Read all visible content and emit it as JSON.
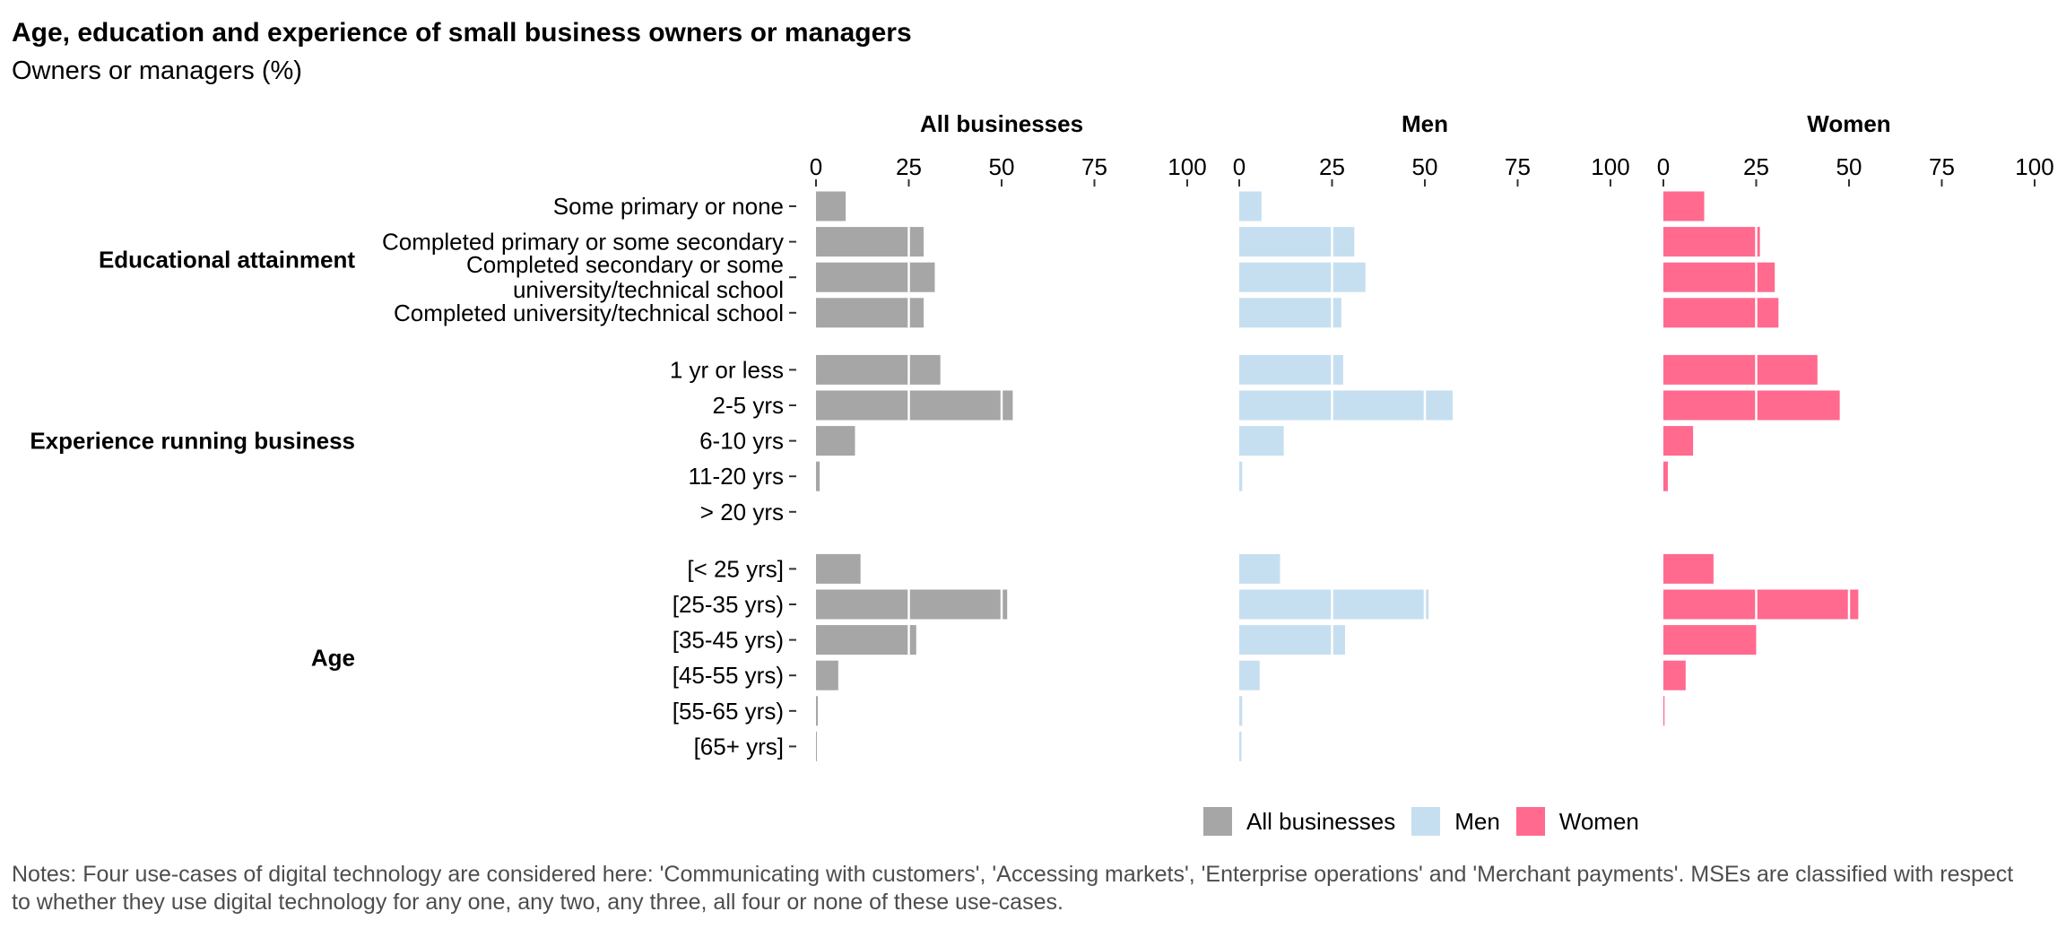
{
  "title": "Age, education and experience of small business owners or managers",
  "subtitle": "Owners or managers (%)",
  "note": "Notes: Four use-cases of digital technology are considered here: 'Communicating with customers', 'Accessing markets', 'Enterprise operations' and 'Merchant payments'. MSEs are classified with respect to whether they use digital technology for any one, any two, any three, all four or none of these use-cases.",
  "colors": {
    "All businesses": "#a6a6a6",
    "Men": "#c6dff0",
    "Women": "#ff6a8e"
  },
  "chart_data": {
    "type": "bar",
    "orientation": "horizontal",
    "facets": [
      "All businesses",
      "Men",
      "Women"
    ],
    "xlim": [
      0,
      100
    ],
    "xticks": [
      0,
      25,
      50,
      75,
      100
    ],
    "grid": false,
    "legend_position": "bottom",
    "groups": [
      {
        "name": "Educational attainment",
        "categories": [
          "Some primary or none",
          "Completed primary or some secondary",
          "Completed secondary or some\nuniversity/technical school",
          "Completed university/technical school"
        ]
      },
      {
        "name": "Experience running business",
        "categories": [
          "1 yr or less",
          "2-5 yrs",
          "6-10 yrs",
          "11-20 yrs",
          "> 20 yrs"
        ]
      },
      {
        "name": "Age",
        "categories": [
          "[< 25 yrs]",
          "[25-35 yrs)",
          "[35-45 yrs)",
          "[45-55 yrs)",
          "[55-65 yrs)",
          "[65+ yrs]"
        ]
      }
    ],
    "series": [
      {
        "name": "All businesses",
        "values": [
          8,
          29,
          32,
          29,
          33.5,
          53,
          10.5,
          1,
          0,
          12,
          51.5,
          27,
          6,
          0.5,
          0.2
        ]
      },
      {
        "name": "Men",
        "values": [
          6,
          31,
          34,
          27.5,
          28,
          57.5,
          12,
          0.8,
          0,
          11,
          51,
          28.5,
          5.5,
          0.8,
          0.6
        ]
      },
      {
        "name": "Women",
        "values": [
          11,
          26,
          30,
          31,
          41.5,
          47.5,
          8,
          1.2,
          0,
          13.5,
          52.5,
          25,
          6,
          0.3,
          0
        ]
      }
    ]
  }
}
